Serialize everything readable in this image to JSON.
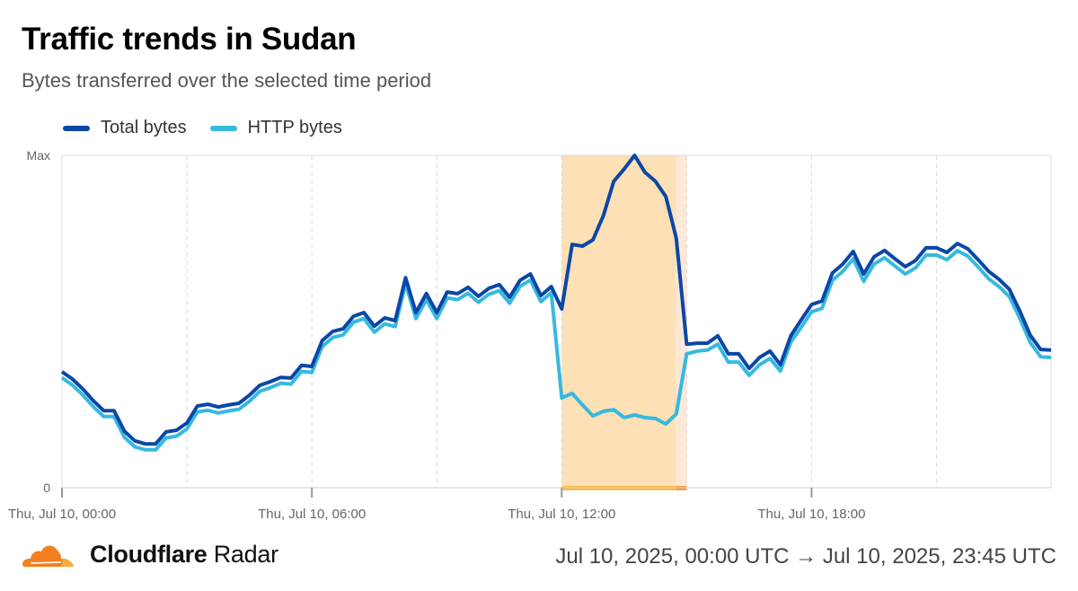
{
  "header": {
    "title": "Traffic trends in Sudan",
    "subtitle": "Bytes transferred over the selected time period"
  },
  "footer": {
    "brand_bold": "Cloudflare",
    "brand_light": "Radar",
    "time_range": "Jul 10, 2025, 00:00 UTC → Jul 10, 2025, 23:45 UTC"
  },
  "chart_data": {
    "type": "line",
    "title": "Traffic trends in Sudan",
    "subtitle": "Bytes transferred over the selected time period",
    "xlabel": "",
    "ylabel": "",
    "x_interval": "15 minutes",
    "x_start": "Thu, Jul 10, 00:00",
    "x_end": "Thu, Jul 10, 23:45",
    "ylim": [
      0,
      1
    ],
    "y_tick_labels": [
      "0",
      "Max"
    ],
    "x_tick_labels": [
      "Thu, Jul 10, 00:00",
      "Thu, Jul 10, 06:00",
      "Thu, Jul 10, 12:00",
      "Thu, Jul 10, 18:00"
    ],
    "x_tick_indices": [
      0,
      24,
      48,
      72
    ],
    "gridline_indices": [
      12,
      24,
      36,
      48,
      60,
      72,
      84
    ],
    "legend_position": "top-left",
    "highlight": {
      "start_index": 48,
      "end_index": 59,
      "tail_end_index": 60,
      "color": "#fde0b6",
      "tail_color": "#fde8d8",
      "bar_color": "#fbbc4a",
      "bar_tail_color": "#f59e4c"
    },
    "series": [
      {
        "name": "Total bytes",
        "color": "#0a47a6",
        "values": [
          0.349,
          0.327,
          0.297,
          0.262,
          0.232,
          0.232,
          0.17,
          0.141,
          0.132,
          0.132,
          0.168,
          0.173,
          0.195,
          0.246,
          0.251,
          0.243,
          0.249,
          0.254,
          0.278,
          0.308,
          0.319,
          0.332,
          0.33,
          0.368,
          0.365,
          0.443,
          0.47,
          0.478,
          0.516,
          0.527,
          0.486,
          0.511,
          0.503,
          0.632,
          0.527,
          0.584,
          0.527,
          0.589,
          0.584,
          0.603,
          0.576,
          0.6,
          0.611,
          0.573,
          0.624,
          0.643,
          0.578,
          0.605,
          0.538,
          0.732,
          0.727,
          0.746,
          0.819,
          0.922,
          0.959,
          1.0,
          0.949,
          0.922,
          0.876,
          0.751,
          0.432,
          0.435,
          0.435,
          0.457,
          0.403,
          0.403,
          0.359,
          0.392,
          0.411,
          0.37,
          0.457,
          0.505,
          0.551,
          0.562,
          0.646,
          0.673,
          0.711,
          0.643,
          0.695,
          0.714,
          0.689,
          0.665,
          0.684,
          0.722,
          0.722,
          0.708,
          0.735,
          0.719,
          0.686,
          0.651,
          0.627,
          0.597,
          0.532,
          0.459,
          0.416,
          0.414
        ]
      },
      {
        "name": "HTTP bytes",
        "color": "#36b9df",
        "values": [
          0.331,
          0.309,
          0.279,
          0.244,
          0.214,
          0.214,
          0.152,
          0.123,
          0.114,
          0.114,
          0.15,
          0.155,
          0.177,
          0.228,
          0.233,
          0.225,
          0.231,
          0.236,
          0.26,
          0.29,
          0.301,
          0.314,
          0.312,
          0.35,
          0.347,
          0.425,
          0.452,
          0.46,
          0.498,
          0.509,
          0.468,
          0.493,
          0.485,
          0.614,
          0.509,
          0.566,
          0.509,
          0.571,
          0.566,
          0.585,
          0.558,
          0.582,
          0.593,
          0.555,
          0.606,
          0.625,
          0.56,
          0.587,
          0.27,
          0.284,
          0.249,
          0.216,
          0.23,
          0.235,
          0.211,
          0.219,
          0.211,
          0.208,
          0.192,
          0.222,
          0.403,
          0.411,
          0.414,
          0.432,
          0.378,
          0.378,
          0.338,
          0.37,
          0.389,
          0.351,
          0.438,
          0.483,
          0.529,
          0.54,
          0.624,
          0.651,
          0.689,
          0.621,
          0.673,
          0.692,
          0.667,
          0.643,
          0.662,
          0.7,
          0.7,
          0.686,
          0.713,
          0.697,
          0.664,
          0.629,
          0.605,
          0.575,
          0.51,
          0.437,
          0.394,
          0.392
        ]
      }
    ]
  }
}
